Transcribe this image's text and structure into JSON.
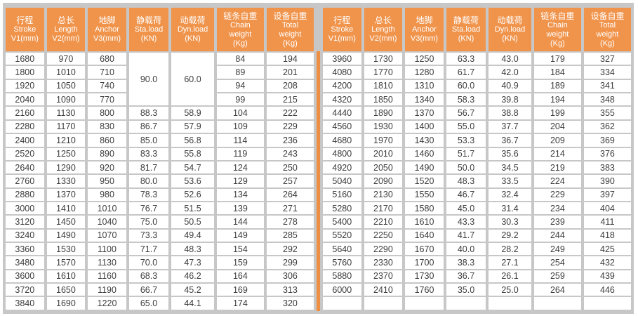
{
  "colors": {
    "header_orange": "#F0944C",
    "divider_orange": "#EE9043",
    "frame_gray": "#C7C7C7",
    "cell_background": "#FFFFFF",
    "data_text": "#3D3D3D",
    "header_text": "#FFFFFF"
  },
  "headers": [
    [
      "行程",
      "Stroke",
      "V1(mm)"
    ],
    [
      "总长",
      "Length",
      "V2(mm)"
    ],
    [
      "地脚",
      "Anchor",
      "V3(mm)"
    ],
    [
      "静载荷",
      "Sta.load",
      "(KN)"
    ],
    [
      "动载荷",
      "Dyn.load",
      "(KN)"
    ],
    [
      "链条自重",
      "Chain",
      "weight",
      "(Kg)"
    ],
    [
      "设备自重",
      "Total",
      "weight",
      "(Kg)"
    ]
  ],
  "left_table": {
    "merged_cells": [
      {
        "row": 0,
        "col": 3,
        "rowspan": 4,
        "value": "90.0"
      },
      {
        "row": 0,
        "col": 4,
        "rowspan": 4,
        "value": "60.0"
      }
    ],
    "rows": [
      [
        "1680",
        "970",
        "680",
        null,
        null,
        "84",
        "194"
      ],
      [
        "1800",
        "1010",
        "710",
        null,
        null,
        "89",
        "201"
      ],
      [
        "1920",
        "1050",
        "740",
        null,
        null,
        "94",
        "208"
      ],
      [
        "2040",
        "1090",
        "770",
        null,
        null,
        "99",
        "215"
      ],
      [
        "2160",
        "1130",
        "800",
        "88.3",
        "58.9",
        "104",
        "222"
      ],
      [
        "2280",
        "1170",
        "830",
        "86.7",
        "57.9",
        "109",
        "229"
      ],
      [
        "2400",
        "1210",
        "860",
        "85.0",
        "56.8",
        "114",
        "236"
      ],
      [
        "2520",
        "1250",
        "890",
        "83.3",
        "55.8",
        "119",
        "243"
      ],
      [
        "2640",
        "1290",
        "920",
        "81.7",
        "54.7",
        "124",
        "250"
      ],
      [
        "2760",
        "1330",
        "950",
        "80.0",
        "53.6",
        "129",
        "257"
      ],
      [
        "2880",
        "1370",
        "980",
        "78.3",
        "52.6",
        "134",
        "264"
      ],
      [
        "3000",
        "1410",
        "1010",
        "76.7",
        "51.5",
        "139",
        "271"
      ],
      [
        "3120",
        "1450",
        "1040",
        "75.0",
        "50.5",
        "144",
        "278"
      ],
      [
        "3240",
        "1490",
        "1070",
        "73.3",
        "49.4",
        "149",
        "285"
      ],
      [
        "3360",
        "1530",
        "1100",
        "71.7",
        "48.3",
        "154",
        "292"
      ],
      [
        "3480",
        "1570",
        "1130",
        "70.0",
        "47.3",
        "159",
        "299"
      ],
      [
        "3600",
        "1610",
        "1160",
        "68.3",
        "46.2",
        "164",
        "306"
      ],
      [
        "3720",
        "1650",
        "1190",
        "66.7",
        "45.2",
        "169",
        "313"
      ],
      [
        "3840",
        "1690",
        "1220",
        "65.0",
        "44.1",
        "174",
        "320"
      ]
    ]
  },
  "right_table": {
    "merged_cells": [],
    "rows": [
      [
        "3960",
        "1730",
        "1250",
        "63.3",
        "43.0",
        "179",
        "327"
      ],
      [
        "4080",
        "1770",
        "1280",
        "61.7",
        "42.0",
        "184",
        "334"
      ],
      [
        "4200",
        "1810",
        "1310",
        "60.0",
        "40.9",
        "189",
        "341"
      ],
      [
        "4320",
        "1850",
        "1340",
        "58.3",
        "39.8",
        "194",
        "348"
      ],
      [
        "4440",
        "1890",
        "1370",
        "56.7",
        "38.8",
        "199",
        "355"
      ],
      [
        "4560",
        "1930",
        "1400",
        "55.0",
        "37.7",
        "204",
        "362"
      ],
      [
        "4680",
        "1970",
        "1430",
        "53.3",
        "36.7",
        "209",
        "369"
      ],
      [
        "4800",
        "2010",
        "1460",
        "51.7",
        "35.6",
        "214",
        "376"
      ],
      [
        "4920",
        "2050",
        "1490",
        "50.0",
        "34.5",
        "219",
        "383"
      ],
      [
        "5040",
        "2090",
        "1520",
        "48.3",
        "33.5",
        "224",
        "390"
      ],
      [
        "5160",
        "2130",
        "1550",
        "46.7",
        "32.4",
        "229",
        "397"
      ],
      [
        "5280",
        "2170",
        "1580",
        "45.0",
        "31.4",
        "234",
        "404"
      ],
      [
        "5400",
        "2210",
        "1610",
        "43.3",
        "30.3",
        "239",
        "411"
      ],
      [
        "5520",
        "2250",
        "1640",
        "41.7",
        "29.2",
        "244",
        "418"
      ],
      [
        "5640",
        "2290",
        "1670",
        "40.0",
        "28.2",
        "249",
        "425"
      ],
      [
        "5760",
        "2330",
        "1700",
        "38.3",
        "27.1",
        "254",
        "432"
      ],
      [
        "5880",
        "2370",
        "1730",
        "36.7",
        "26.1",
        "259",
        "439"
      ],
      [
        "6000",
        "2410",
        "1760",
        "35.0",
        "25.0",
        "264",
        "446"
      ],
      [
        "",
        "",
        "",
        "",
        "",
        "",
        ""
      ]
    ]
  }
}
